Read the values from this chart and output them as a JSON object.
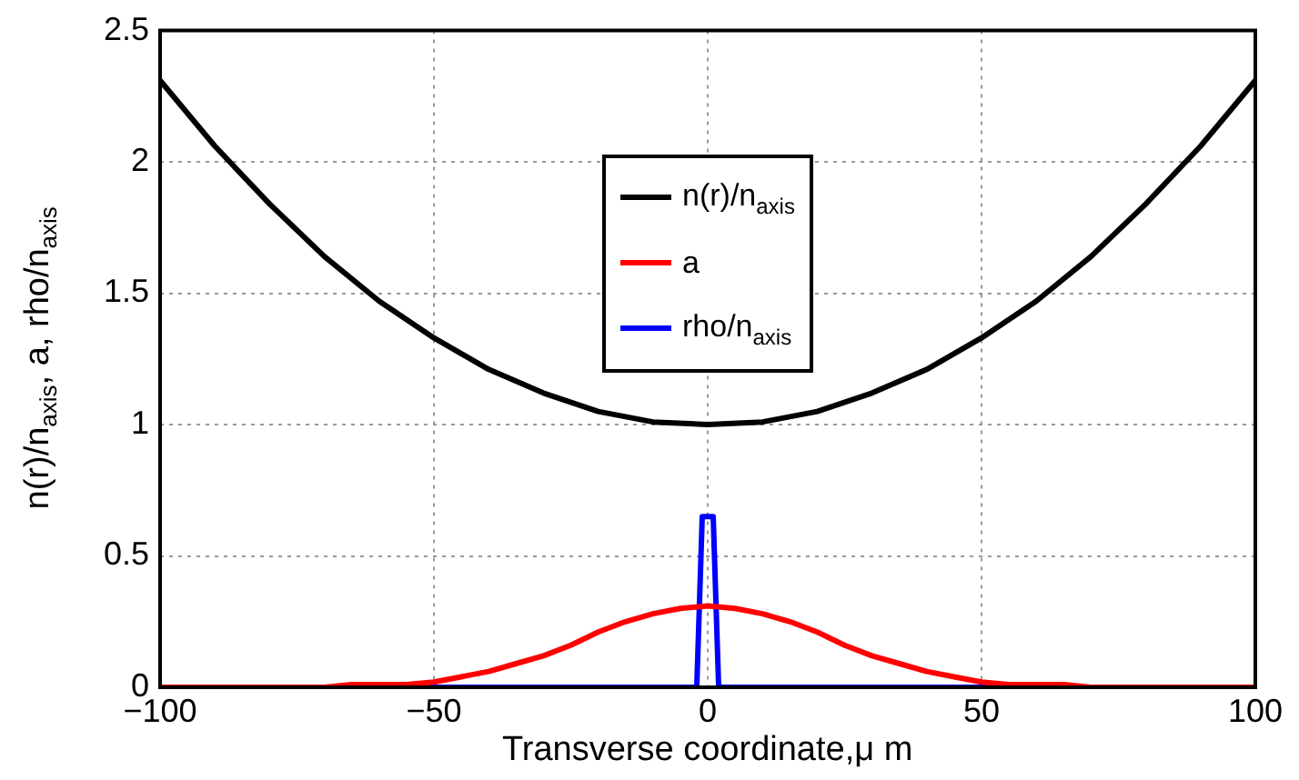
{
  "chart_data": {
    "type": "line",
    "xlabel": "Transverse coordinate,μ m",
    "ylabel": "n(r)/n$_{axis}$,  a,   rho/n$_{axis}$",
    "xlim": [
      -100,
      100
    ],
    "xticks": [
      -100,
      -50,
      0,
      50,
      100
    ],
    "ylim": [
      0,
      2.5
    ],
    "yticks": [
      0,
      0.5,
      1,
      1.5,
      2,
      2.5
    ],
    "grid": true,
    "legend": "top",
    "line_style": "solid",
    "marker": "none",
    "series": [
      {
        "name": "n(r)/n$_{axis}$",
        "color": "#000000",
        "x": [
          -100,
          -90,
          -80,
          -70,
          -60,
          -50,
          -40,
          -30,
          -20,
          -10,
          0,
          10,
          20,
          30,
          40,
          50,
          60,
          70,
          80,
          90,
          100
        ],
        "values": [
          2.31,
          2.06,
          1.84,
          1.64,
          1.47,
          1.33,
          1.21,
          1.12,
          1.05,
          1.01,
          1,
          1.01,
          1.05,
          1.12,
          1.21,
          1.33,
          1.47,
          1.64,
          1.84,
          2.06,
          2.31
        ]
      },
      {
        "name": "a",
        "color": "#ff0000",
        "x": [
          -100,
          -80,
          -70,
          -65,
          -60,
          -55,
          -50,
          -45,
          -40,
          -35,
          -30,
          -25,
          -20,
          -15,
          -10,
          -5,
          0,
          5,
          10,
          15,
          20,
          25,
          30,
          35,
          40,
          45,
          50,
          55,
          60,
          65,
          70,
          80,
          100
        ],
        "values": [
          0,
          0,
          0,
          0.01,
          0.01,
          0.01,
          0.02,
          0.04,
          0.06,
          0.09,
          0.12,
          0.16,
          0.21,
          0.25,
          0.28,
          0.3,
          0.31,
          0.3,
          0.28,
          0.25,
          0.21,
          0.16,
          0.12,
          0.09,
          0.06,
          0.04,
          0.02,
          0.01,
          0.01,
          0.01,
          0,
          0,
          0
        ]
      },
      {
        "name": "rho/n$_{axis}$",
        "color": "#0000ff",
        "x": [
          -100,
          -2,
          -1,
          1,
          2,
          100
        ],
        "values": [
          0,
          0,
          0.65,
          0.65,
          0,
          0
        ]
      }
    ]
  }
}
